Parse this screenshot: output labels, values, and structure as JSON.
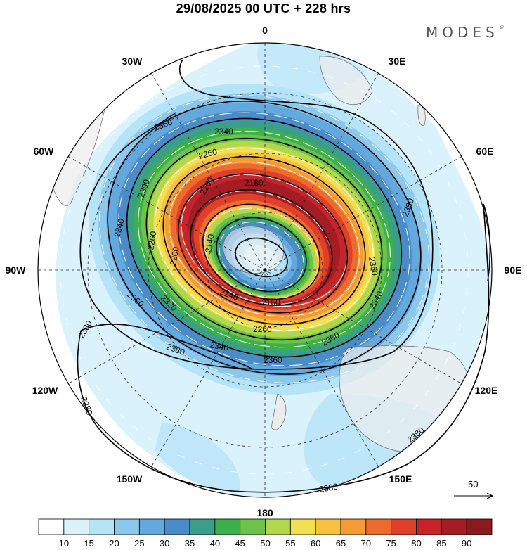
{
  "title": "29/08/2025  00 UTC  + 228 hrs",
  "brand": "MODES",
  "brand_mark": "©",
  "longitude_labels": {
    "n0": "0",
    "n30e": "30E",
    "n60e": "60E",
    "n90e": "90E",
    "n120e": "120E",
    "n150e": "150E",
    "n180": "180",
    "n150w": "150W",
    "n120w": "120W",
    "n90w": "90W",
    "n60w": "60W",
    "n30w": "30W"
  },
  "contour_labels": {
    "c2340a": "2340",
    "c2360a": "2360",
    "c2260a": "2260",
    "c2180": "2180",
    "c2200a": "2200",
    "c2300": "2300",
    "c2340b": "2340",
    "c2260b": "2260",
    "c2200b": "2200",
    "c2140": "2140",
    "c2360b": "2360",
    "c2240": "2240",
    "c2160": "2160",
    "c2360c": "2360",
    "c2380a": "2380",
    "c2380b": "2380",
    "c2380c": "2380",
    "c2340c": "2340",
    "c2360d": "2360",
    "c2260c": "2260",
    "c2360e": "2360",
    "c2340d": "2340",
    "c2380d": "2380",
    "c2380e": "2380",
    "c2380f": "2380",
    "c2320": "2320"
  },
  "reference_vector": "50",
  "colorbar": {
    "ticks": [
      "10",
      "15",
      "20",
      "25",
      "30",
      "35",
      "40",
      "45",
      "50",
      "55",
      "60",
      "65",
      "70",
      "75",
      "80",
      "85",
      "90"
    ],
    "colors": [
      "#ffffff",
      "#d9f2fc",
      "#b5e3f8",
      "#8cc8ec",
      "#64a9dd",
      "#4a8cc7",
      "#3a9e8a",
      "#3cb04a",
      "#6cc24a",
      "#b0d84a",
      "#f0e052",
      "#f8c142",
      "#f59a35",
      "#ee6b2e",
      "#e0402a",
      "#c8232a",
      "#a51c24",
      "#8a1a1e"
    ]
  }
}
